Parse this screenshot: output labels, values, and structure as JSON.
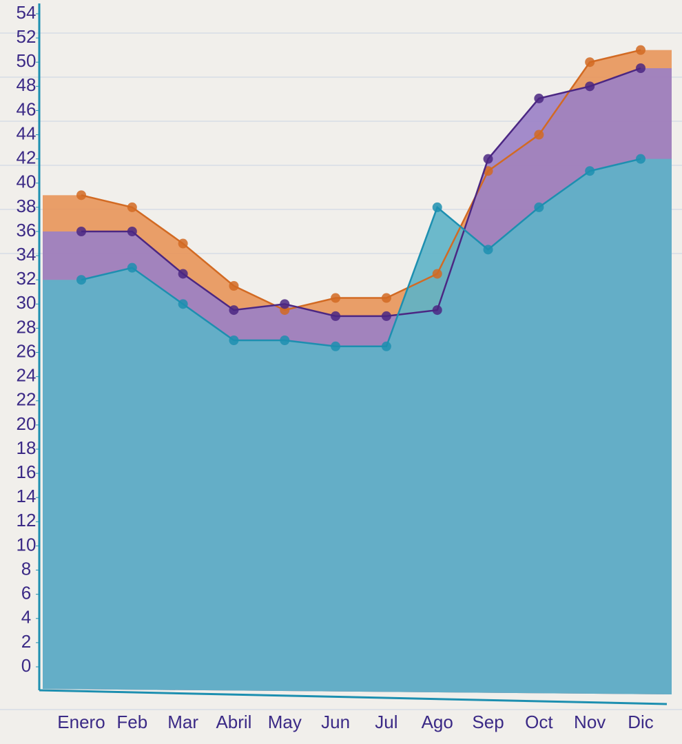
{
  "chart_data": {
    "type": "area",
    "categories": [
      "Enero",
      "Feb",
      "Mar",
      "Abril",
      "May",
      "Jun",
      "Jul",
      "Ago",
      "Sep",
      "Oct",
      "Nov",
      "Dic"
    ],
    "series": [
      {
        "color": "#e8955a",
        "line_color": "#d26a23",
        "values": [
          39,
          38,
          35,
          31.5,
          29.5,
          30.5,
          30.5,
          32.5,
          41,
          44,
          50,
          51
        ]
      },
      {
        "color": "#9a80c6",
        "line_color": "#4b2783",
        "values": [
          36,
          36,
          32.5,
          29.5,
          30,
          29,
          29,
          29.5,
          42,
          47,
          48,
          49.5
        ]
      },
      {
        "color": "#5db3c8",
        "line_color": "#1d8fb0",
        "values": [
          32,
          33,
          30,
          27,
          27,
          26.5,
          26.5,
          38,
          34.5,
          38,
          41,
          42
        ]
      }
    ],
    "ylim": [
      0,
      54
    ],
    "yticks": [
      0,
      2,
      4,
      6,
      8,
      10,
      12,
      14,
      16,
      18,
      20,
      22,
      24,
      26,
      28,
      30,
      32,
      34,
      36,
      38,
      40,
      42,
      44,
      46,
      48,
      50,
      52,
      54
    ],
    "grid": false
  }
}
